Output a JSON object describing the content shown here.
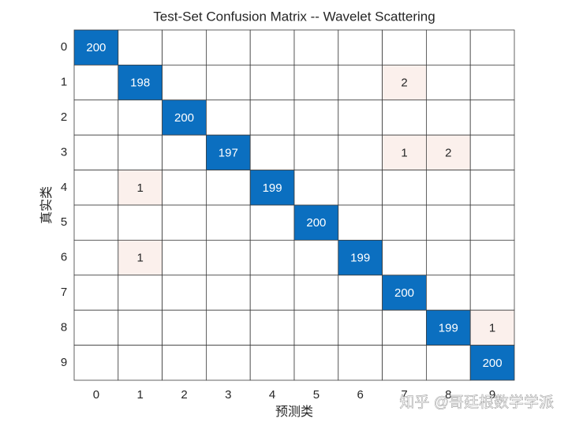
{
  "chart_data": {
    "type": "confusion_matrix",
    "title": "Test-Set Confusion Matrix -- Wavelet Scattering",
    "xlabel": "预测类",
    "ylabel": "真实类",
    "x_categories": [
      "0",
      "1",
      "2",
      "3",
      "4",
      "5",
      "6",
      "7",
      "8",
      "9"
    ],
    "y_categories": [
      "0",
      "1",
      "2",
      "3",
      "4",
      "5",
      "6",
      "7",
      "8",
      "9"
    ],
    "matrix": [
      [
        200,
        null,
        null,
        null,
        null,
        null,
        null,
        null,
        null,
        null
      ],
      [
        null,
        198,
        null,
        null,
        null,
        null,
        null,
        2,
        null,
        null
      ],
      [
        null,
        null,
        200,
        null,
        null,
        null,
        null,
        null,
        null,
        null
      ],
      [
        null,
        null,
        null,
        197,
        null,
        null,
        null,
        1,
        2,
        null
      ],
      [
        null,
        1,
        null,
        null,
        199,
        null,
        null,
        null,
        null,
        null
      ],
      [
        null,
        null,
        null,
        null,
        null,
        200,
        null,
        null,
        null,
        null
      ],
      [
        null,
        1,
        null,
        null,
        null,
        null,
        199,
        null,
        null,
        null
      ],
      [
        null,
        null,
        null,
        null,
        null,
        null,
        null,
        200,
        null,
        null
      ],
      [
        null,
        null,
        null,
        null,
        null,
        null,
        null,
        null,
        199,
        1
      ],
      [
        null,
        null,
        null,
        null,
        null,
        null,
        null,
        null,
        null,
        200
      ]
    ],
    "diagonal_color": "#0b6fc0",
    "off_diagonal_color": "#fbf0ec",
    "watermark": "知乎 @哥廷根数学学派"
  }
}
